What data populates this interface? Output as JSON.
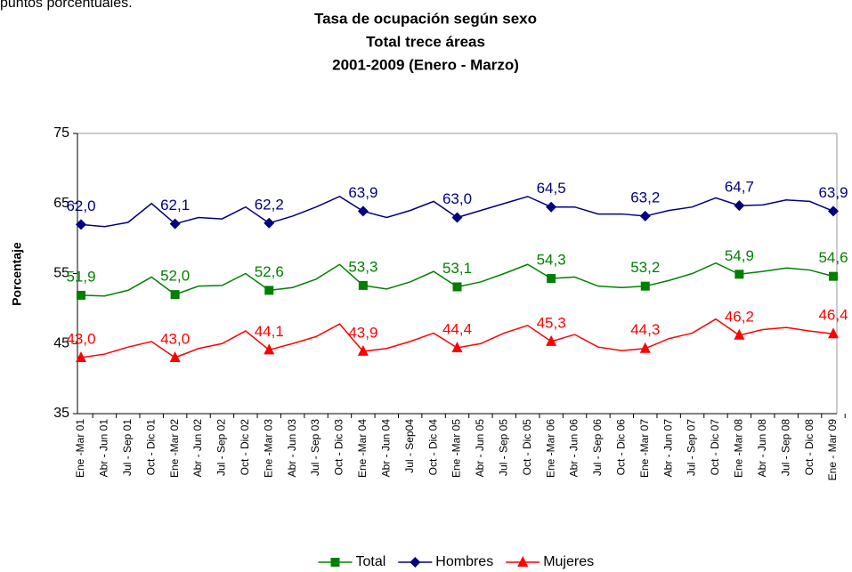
{
  "intro_text": "puntos porcentuales.",
  "chart_data": {
    "type": "line",
    "title": [
      "Tasa de ocupación según sexo",
      "Total  trece áreas",
      "2001-2009 (Enero - Marzo)"
    ],
    "y_label": "Porcentaje",
    "categories": [
      "Ene -Mar 01",
      "Abr - Jun 01",
      "Jul - Sep 01",
      "Oct - Dic 01",
      "Ene -Mar 02",
      "Abr - Jun 02",
      "Jul - Sep 02",
      "Oct - Dic 02",
      "Ene -Mar 03",
      "Abr - Jun 03",
      "Jul - Sep 03",
      "Oct - Dic 03",
      "Ene -Mar 04",
      "Abr - Jun 04",
      "Jul - Sep04",
      "Oct - Dic 04",
      "Ene -Mar 05",
      "Abr - Jun 05",
      "Jul - Sep 05",
      "Oct - Dic 05",
      "Ene -Mar 06",
      "Abr - Jun 06",
      "Jul - Sep 06",
      "Oct - Dic 06",
      "Ene -Mar 07",
      "Abr - Jun 07",
      "Jul - Sep 07",
      "Oct - Dic 07",
      "Ene -Mar 08",
      "Abr - Jun 08",
      "Jul - Sep 08",
      "Oct - Dic 08",
      "Ene - Mar 09"
    ],
    "series": [
      {
        "name": "Total",
        "color": "#008000",
        "marker": "square",
        "values": [
          51.9,
          51.8,
          52.6,
          54.5,
          52.0,
          53.2,
          53.3,
          55.0,
          52.6,
          53.0,
          54.2,
          56.3,
          53.3,
          52.8,
          53.8,
          55.3,
          53.1,
          53.8,
          55.0,
          56.3,
          54.3,
          54.5,
          53.2,
          53.0,
          53.2,
          54.0,
          55.0,
          56.5,
          54.9,
          55.3,
          55.8,
          55.5,
          54.6
        ],
        "value_labels": [
          "51,9",
          null,
          null,
          null,
          "52,0",
          null,
          null,
          null,
          "52,6",
          null,
          null,
          null,
          "53,3",
          null,
          null,
          null,
          "53,1",
          null,
          null,
          null,
          "54,3",
          null,
          null,
          null,
          "53,2",
          null,
          null,
          null,
          "54,9",
          null,
          null,
          null,
          "54,6"
        ]
      },
      {
        "name": "Hombres",
        "color": "#000080",
        "marker": "diamond",
        "values": [
          62.0,
          61.7,
          62.3,
          65.0,
          62.1,
          63.0,
          62.8,
          64.5,
          62.2,
          63.2,
          64.5,
          66.0,
          63.9,
          63.0,
          64.0,
          65.3,
          63.0,
          64.0,
          65.0,
          66.0,
          64.5,
          64.5,
          63.5,
          63.5,
          63.2,
          64.0,
          64.5,
          65.8,
          64.7,
          64.8,
          65.5,
          65.3,
          63.9
        ],
        "value_labels": [
          "62,0",
          null,
          null,
          null,
          "62,1",
          null,
          null,
          null,
          "62,2",
          null,
          null,
          null,
          "63,9",
          null,
          null,
          null,
          "63,0",
          null,
          null,
          null,
          "64,5",
          null,
          null,
          null,
          "63,2",
          null,
          null,
          null,
          "64,7",
          null,
          null,
          null,
          "63,9"
        ]
      },
      {
        "name": "Mujeres",
        "color": "#ff0000",
        "marker": "triangle",
        "values": [
          43.0,
          43.5,
          44.5,
          45.3,
          43.0,
          44.3,
          45.0,
          46.8,
          44.1,
          45.0,
          46.0,
          47.8,
          43.9,
          44.3,
          45.3,
          46.5,
          44.4,
          45.0,
          46.5,
          47.6,
          45.3,
          46.3,
          44.5,
          44.0,
          44.3,
          45.7,
          46.5,
          48.5,
          46.2,
          47.0,
          47.3,
          46.8,
          46.4
        ],
        "value_labels": [
          "43,0",
          null,
          null,
          null,
          "43,0",
          null,
          null,
          null,
          "44,1",
          null,
          null,
          null,
          "43,9",
          null,
          null,
          null,
          "44,4",
          null,
          null,
          null,
          "45,3",
          null,
          null,
          null,
          "44,3",
          null,
          null,
          null,
          "46,2",
          null,
          null,
          null,
          "46,4"
        ]
      }
    ],
    "ylim": [
      35,
      75
    ],
    "yticks": [
      35,
      45,
      55,
      65,
      75
    ],
    "grid": false,
    "legend": "bottom"
  }
}
